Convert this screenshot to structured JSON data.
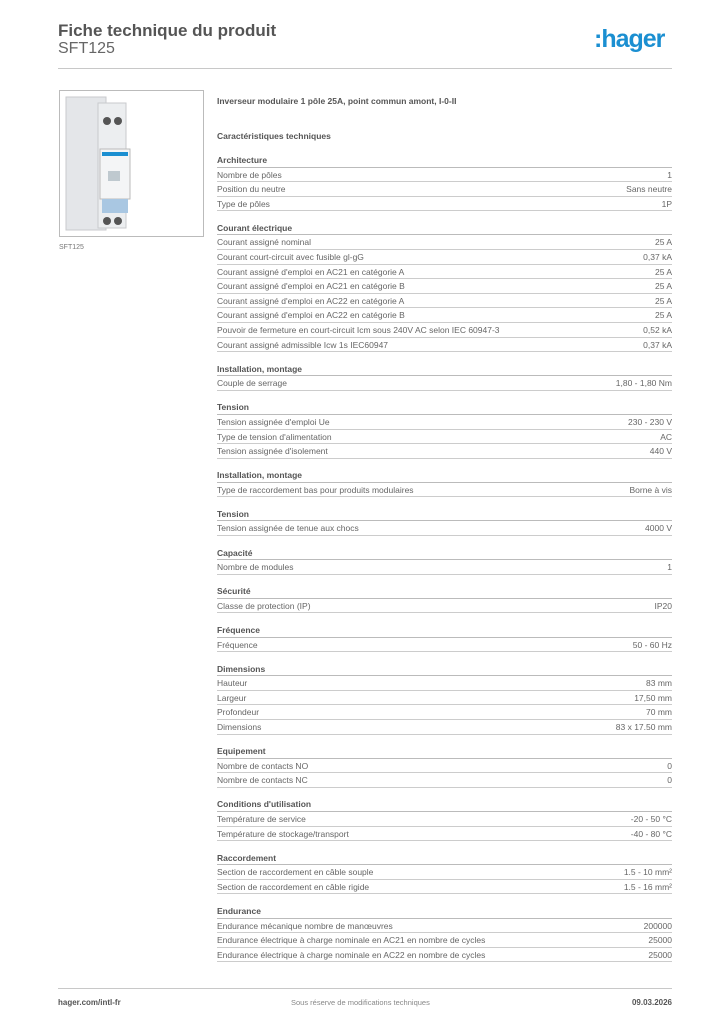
{
  "header": {
    "title": "Fiche technique du produit",
    "subtitle": "SFT125",
    "logo": ":hager"
  },
  "brand_color": "#1b8fd1",
  "product": {
    "image_caption": "SFT125",
    "description": "Inverseur modulaire 1 pôle 25A, point commun amont, I-0-II",
    "characteristics_title": "Caractéristiques techniques"
  },
  "sections": [
    {
      "title": "Architecture",
      "rows": [
        [
          "Nombre de pôles",
          "1"
        ],
        [
          "Position du neutre",
          "Sans neutre"
        ],
        [
          "Type de pôles",
          "1P"
        ]
      ]
    },
    {
      "title": "Courant électrique",
      "rows": [
        [
          "Courant assigné nominal",
          "25 A"
        ],
        [
          "Courant court-circuit avec fusible gl-gG",
          "0,37 kA"
        ],
        [
          "Courant assigné d'emploi en AC21 en catégorie A",
          "25 A"
        ],
        [
          "Courant assigné d'emploi en AC21 en catégorie B",
          "25 A"
        ],
        [
          "Courant assigné d'emploi en AC22 en catégorie A",
          "25 A"
        ],
        [
          "Courant assigné d'emploi en AC22 en catégorie B",
          "25 A"
        ],
        [
          "Pouvoir de fermeture en court-circuit Icm sous 240V AC selon IEC 60947-3",
          "0,52 kA"
        ],
        [
          "Courant assigné admissible Icw 1s IEC60947",
          "0,37 kA"
        ]
      ]
    },
    {
      "title": "Installation, montage",
      "rows": [
        [
          "Couple de serrage",
          "1,80 - 1,80 Nm"
        ]
      ]
    },
    {
      "title": "Tension",
      "rows": [
        [
          "Tension assignée d'emploi Ue",
          "230 - 230 V"
        ],
        [
          "Type de tension d'alimentation",
          "AC"
        ],
        [
          "Tension assignée d'isolement",
          "440 V"
        ]
      ]
    },
    {
      "title": "Installation, montage",
      "rows": [
        [
          "Type de raccordement bas pour produits modulaires",
          "Borne à vis"
        ]
      ]
    },
    {
      "title": "Tension",
      "rows": [
        [
          "Tension assignée de tenue aux chocs",
          "4000 V"
        ]
      ]
    },
    {
      "title": "Capacité",
      "rows": [
        [
          "Nombre de modules",
          "1"
        ]
      ]
    },
    {
      "title": "Sécurité",
      "rows": [
        [
          "Classe de protection (IP)",
          "IP20"
        ]
      ]
    },
    {
      "title": "Fréquence",
      "rows": [
        [
          "Fréquence",
          "50 - 60 Hz"
        ]
      ]
    },
    {
      "title": "Dimensions",
      "rows": [
        [
          "Hauteur",
          "83 mm"
        ],
        [
          "Largeur",
          "17,50 mm"
        ],
        [
          "Profondeur",
          "70 mm"
        ],
        [
          "Dimensions",
          "83 x 17.50 mm"
        ]
      ]
    },
    {
      "title": "Equipement",
      "rows": [
        [
          "Nombre de contacts NO",
          "0"
        ],
        [
          "Nombre de contacts NC",
          "0"
        ]
      ]
    },
    {
      "title": "Conditions d'utilisation",
      "rows": [
        [
          "Température de service",
          "-20 - 50 °C"
        ],
        [
          "Température de stockage/transport",
          "-40 - 80 °C"
        ]
      ]
    },
    {
      "title": "Raccordement",
      "rows": [
        [
          "Section de raccordement en câble souple",
          "1.5 - 10 mm²"
        ],
        [
          "Section de raccordement en câble rigide",
          "1.5 - 16 mm²"
        ]
      ]
    },
    {
      "title": "Endurance",
      "rows": [
        [
          "Endurance mécanique nombre de manœuvres",
          "200000"
        ],
        [
          "Endurance électrique à charge nominale en AC21 en nombre de cycles",
          "25000"
        ],
        [
          "Endurance électrique à charge nominale en AC22 en nombre de cycles",
          "25000"
        ]
      ]
    }
  ],
  "footer": {
    "website": "hager.com/intl-fr",
    "disclaimer": "Sous réserve de modifications techniques",
    "date": "09.03.2026"
  }
}
